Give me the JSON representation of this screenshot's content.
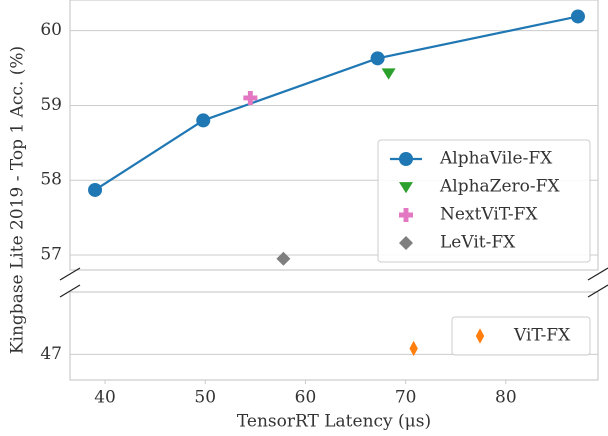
{
  "chart_data": [
    {
      "type": "line",
      "ylabel": "Kingbase Lite 2019 - Top 1 Acc. (%)",
      "xlim": [
        36.5,
        89.2
      ],
      "ylim": [
        56.8,
        60.41
      ],
      "yticks": [
        57,
        58,
        59,
        60
      ],
      "grid": true,
      "legend": "lower right",
      "series": [
        {
          "name": "AlphaVile-FX",
          "color": "#1f77b4",
          "marker": "o",
          "line": true,
          "x": [
            39,
            49.8,
            67.2,
            87.2
          ],
          "values": [
            57.87,
            58.8,
            59.63,
            60.19
          ]
        },
        {
          "name": "AlphaZero-FX",
          "color": "#2ca02c",
          "marker": "v",
          "line": false,
          "x": [
            68.3
          ],
          "values": [
            59.43
          ]
        },
        {
          "name": "NextViT-FX",
          "color": "#e377c2",
          "marker": "P",
          "line": false,
          "x": [
            54.5
          ],
          "values": [
            59.1
          ]
        },
        {
          "name": "LeVit-FX",
          "color": "#7f7f7f",
          "marker": "D",
          "line": false,
          "x": [
            57.8
          ],
          "values": [
            56.95
          ]
        }
      ]
    },
    {
      "type": "line",
      "xlabel": "TensorRT Latency (μs)",
      "xlim": [
        36.5,
        89.2
      ],
      "xticks": [
        40,
        50,
        60,
        70,
        80
      ],
      "ylim": [
        46.65,
        47.85
      ],
      "yticks": [
        47
      ],
      "grid": true,
      "legend": "center right",
      "series": [
        {
          "name": "ViT-FX",
          "color": "#ff7f0e",
          "marker": "d",
          "line": false,
          "x": [
            70.8
          ],
          "values": [
            47.08
          ]
        }
      ]
    }
  ]
}
